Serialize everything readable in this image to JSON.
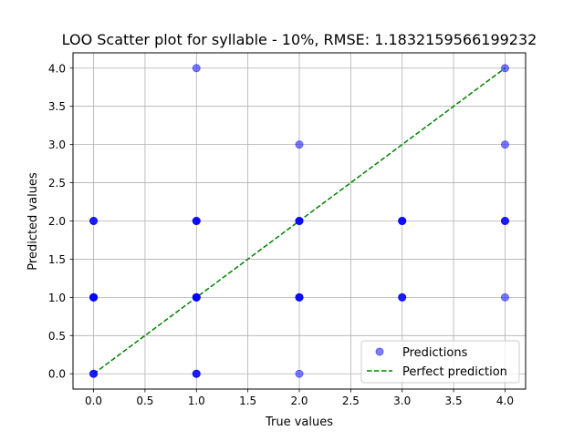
{
  "chart_data": {
    "type": "scatter",
    "title": "LOO Scatter plot for syllable - 10%, RMSE: 1.1832159566199232",
    "xlabel": "True values",
    "ylabel": "Predicted values",
    "xlim": [
      -0.2,
      4.2
    ],
    "ylim": [
      -0.2,
      4.2
    ],
    "xticks": [
      0.0,
      0.5,
      1.0,
      1.5,
      2.0,
      2.5,
      3.0,
      3.5,
      4.0
    ],
    "xtick_labels": [
      "0.0",
      "0.5",
      "1.0",
      "1.5",
      "2.0",
      "2.5",
      "3.0",
      "3.5",
      "4.0"
    ],
    "yticks": [
      0.0,
      0.5,
      1.0,
      1.5,
      2.0,
      2.5,
      3.0,
      3.5,
      4.0
    ],
    "ytick_labels": [
      "0.0",
      "0.5",
      "1.0",
      "1.5",
      "2.0",
      "2.5",
      "3.0",
      "3.5",
      "4.0"
    ],
    "grid": true,
    "legend_position": "lower-right",
    "series": [
      {
        "name": "Predictions",
        "kind": "scatter",
        "color": "#0000ff",
        "points": [
          {
            "x": 0,
            "y": 0,
            "count": 3
          },
          {
            "x": 0,
            "y": 1,
            "count": 6
          },
          {
            "x": 0,
            "y": 2,
            "count": 3
          },
          {
            "x": 1,
            "y": 0,
            "count": 3
          },
          {
            "x": 1,
            "y": 1,
            "count": 6
          },
          {
            "x": 1,
            "y": 2,
            "count": 4
          },
          {
            "x": 1,
            "y": 4,
            "count": 1
          },
          {
            "x": 2,
            "y": 0,
            "count": 1
          },
          {
            "x": 2,
            "y": 1,
            "count": 4
          },
          {
            "x": 2,
            "y": 2,
            "count": 4
          },
          {
            "x": 2,
            "y": 3,
            "count": 1
          },
          {
            "x": 3,
            "y": 1,
            "count": 3
          },
          {
            "x": 3,
            "y": 2,
            "count": 4
          },
          {
            "x": 4,
            "y": 1,
            "count": 1
          },
          {
            "x": 4,
            "y": 2,
            "count": 3
          },
          {
            "x": 4,
            "y": 3,
            "count": 1
          },
          {
            "x": 4,
            "y": 4,
            "count": 1
          }
        ]
      },
      {
        "name": "Perfect prediction",
        "kind": "line",
        "color": "#008000",
        "line_style": "dashed",
        "x": [
          0,
          4
        ],
        "y": [
          0,
          4
        ]
      }
    ]
  }
}
